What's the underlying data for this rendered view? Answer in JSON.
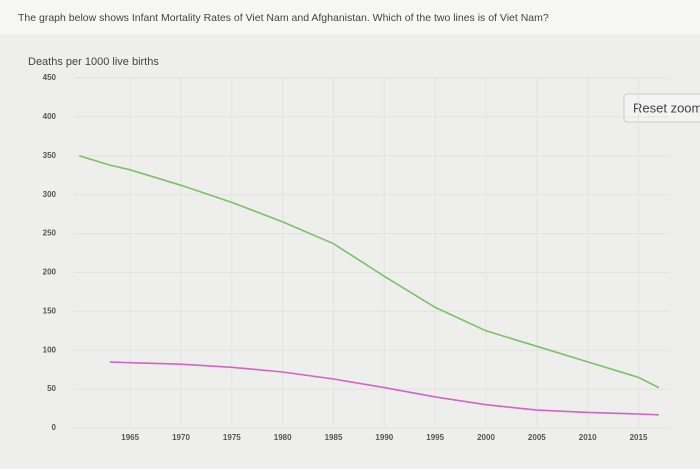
{
  "question": "The graph below shows Infant Mortality Rates of Viet Nam and Afghanistan. Which of the two lines is of Viet Nam?",
  "reset_button": "Reset zoom",
  "chart_data": {
    "type": "line",
    "y_label": "Deaths per 1000 live births",
    "x": [
      1960,
      1963,
      1965,
      1970,
      1975,
      1980,
      1985,
      1990,
      1995,
      2000,
      2005,
      2010,
      2015,
      2017
    ],
    "series": [
      {
        "color": "#7cc16a",
        "values": [
          350,
          338,
          332,
          312,
          290,
          265,
          237,
          195,
          155,
          125,
          105,
          85,
          65,
          52
        ]
      },
      {
        "color": "#d463c7",
        "values": [
          null,
          85,
          84,
          82,
          78,
          72,
          63,
          52,
          40,
          30,
          23,
          20,
          18,
          17
        ]
      }
    ],
    "xlim": [
      1958,
      2018
    ],
    "xticks": [
      1965,
      1970,
      1975,
      1980,
      1985,
      1990,
      1995,
      2000,
      2005,
      2010,
      2015
    ],
    "ylim": [
      0,
      450
    ],
    "yticks": [
      0,
      50,
      100,
      150,
      200,
      250,
      300,
      350,
      400,
      450
    ],
    "grid": true
  }
}
